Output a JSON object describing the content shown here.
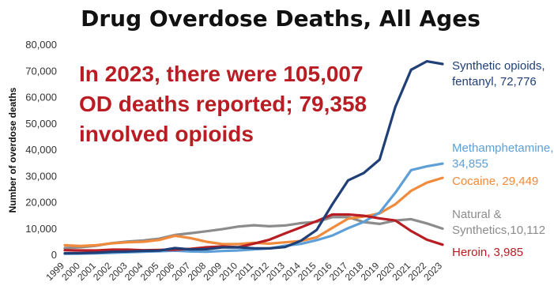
{
  "chart_data": {
    "type": "line",
    "title": "Drug Overdose Deaths, All Ages",
    "xlabel": "",
    "ylabel": "Number of overdose deaths",
    "ylim": [
      0,
      80000
    ],
    "y_ticks": [
      0,
      10000,
      20000,
      30000,
      40000,
      50000,
      60000,
      70000,
      80000
    ],
    "y_tick_labels": [
      "0",
      "10,000",
      "20,000",
      "30,000",
      "40,000",
      "50,000",
      "60,000",
      "70,000",
      "80,000"
    ],
    "x": [
      "1999",
      "2000",
      "2001",
      "2002",
      "2003",
      "2004",
      "2005",
      "2006",
      "2007",
      "2008",
      "2009",
      "2010",
      "2011",
      "2012",
      "2013",
      "2014",
      "2015",
      "2016",
      "2017",
      "2018",
      "2019",
      "2020",
      "2021",
      "2022",
      "2023"
    ],
    "grid": false,
    "legend": "direct labels at right",
    "annotation": [
      "In 2023, there were 105,007",
      "OD deaths reported; 79,358",
      "involved opioids"
    ],
    "series": [
      {
        "name": "Synthetic opioids, fentanyl",
        "label_lines": [
          "Synthetic opioids,",
          "fentanyl, 72,776"
        ],
        "color": "#1f3f77",
        "values": [
          730,
          780,
          960,
          1300,
          1400,
          1660,
          1740,
          2700,
          2200,
          2300,
          2950,
          3000,
          2650,
          2600,
          3100,
          5500,
          9580,
          19400,
          28470,
          31300,
          36400,
          56500,
          70600,
          73800,
          72776
        ]
      },
      {
        "name": "Methamphetamine",
        "label_lines": [
          "Methamphetamine,",
          "34,855"
        ],
        "color": "#5d9fd6",
        "values": [
          550,
          600,
          700,
          900,
          1100,
          1300,
          1500,
          1700,
          1400,
          1300,
          1600,
          1800,
          2200,
          2600,
          3600,
          4300,
          5700,
          7500,
          10300,
          12700,
          16200,
          23800,
          32400,
          33800,
          34855
        ]
      },
      {
        "name": "Cocaine",
        "label_lines": [
          "Cocaine, 29,449"
        ],
        "color": "#f08a3c",
        "values": [
          3800,
          3500,
          3800,
          4500,
          4900,
          5100,
          5800,
          7400,
          6500,
          5100,
          4200,
          4200,
          4700,
          4400,
          4900,
          5400,
          6800,
          10400,
          13900,
          14700,
          15900,
          19400,
          24500,
          27600,
          29449
        ]
      },
      {
        "name": "Natural & Synthetics",
        "label_lines": [
          "Natural &",
          "Synthetics,10,112"
        ],
        "color": "#8c8c8c",
        "values": [
          2700,
          3000,
          3600,
          4600,
          5200,
          5600,
          6300,
          7700,
          8400,
          9100,
          9900,
          10900,
          11400,
          11000,
          11300,
          12200,
          12700,
          14500,
          14500,
          12600,
          11900,
          13200,
          13700,
          12100,
          10112
        ]
      },
      {
        "name": "Heroin",
        "label_lines": [
          "Heroin, 3,985"
        ],
        "color": "#b81d23",
        "values": [
          1900,
          1800,
          1800,
          2100,
          2100,
          1900,
          2000,
          2100,
          2400,
          3000,
          3300,
          3000,
          4400,
          5900,
          8300,
          10600,
          13000,
          15500,
          15500,
          15000,
          14000,
          13200,
          9200,
          5900,
          3985
        ]
      }
    ]
  }
}
